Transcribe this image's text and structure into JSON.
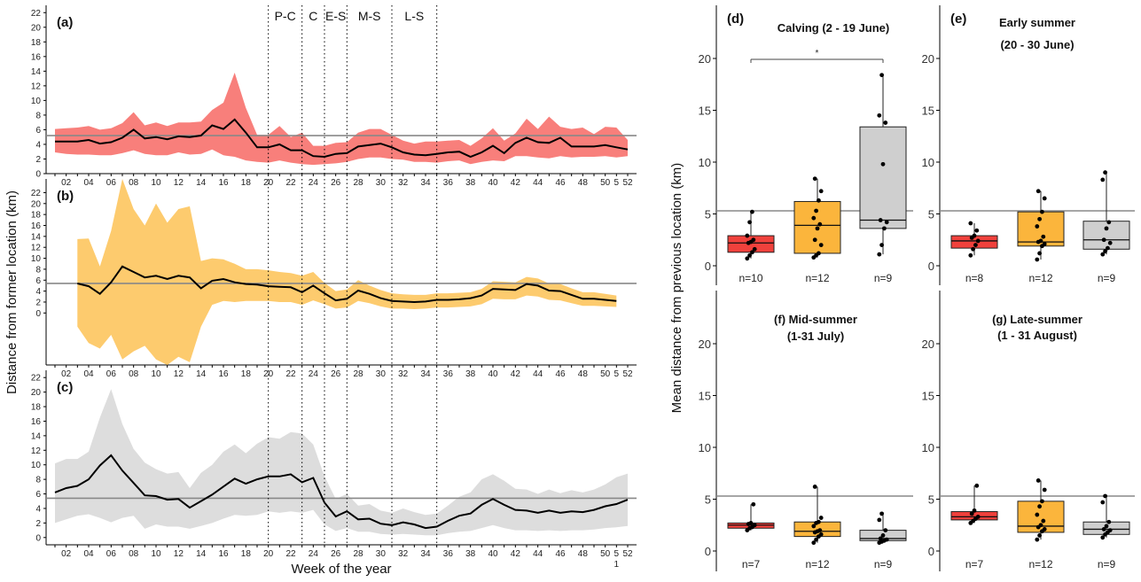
{
  "chart_data": [
    {
      "type": "area",
      "panel": "(a)",
      "xlabel": "Week of the year",
      "ylabel": "Distance from former location (km)",
      "ylim": [
        0,
        23
      ],
      "yticks": [
        0,
        2,
        4,
        6,
        8,
        10,
        12,
        14,
        16,
        18,
        20,
        22
      ],
      "xticks": [
        "02",
        "04",
        "06",
        "08",
        "10",
        "12",
        "14",
        "16",
        "18",
        "20",
        "22",
        "24",
        "26",
        "28",
        "30",
        "32",
        "34",
        "36",
        "38",
        "40",
        "42",
        "44",
        "46",
        "48",
        "50",
        "52"
      ],
      "extra_xtick": "5",
      "extra_xtick_sub": "1",
      "reference_line": 5.2,
      "color": "#f7716d",
      "phases": [
        {
          "label": "P-C",
          "start": 20,
          "end": 23
        },
        {
          "label": "C",
          "start": 23,
          "end": 25
        },
        {
          "label": "E-S",
          "start": 25,
          "end": 27
        },
        {
          "label": "M-S",
          "start": 27,
          "end": 31
        },
        {
          "label": "L-S",
          "start": 31,
          "end": 35
        }
      ],
      "series": [
        {
          "x": [
            1,
            2,
            3,
            4,
            5,
            6,
            7,
            8,
            9,
            10,
            11,
            12,
            13,
            14,
            15,
            16,
            17,
            18,
            19,
            20,
            21,
            22,
            23,
            24,
            25,
            26,
            27,
            28,
            29,
            30,
            31,
            32,
            33,
            34,
            35,
            36,
            37,
            38,
            39,
            40,
            41,
            42,
            43,
            44,
            45,
            46,
            47,
            48,
            49,
            50,
            51,
            52
          ],
          "mean": [
            4.4,
            4.4,
            4.4,
            4.6,
            4.1,
            4.3,
            4.9,
            6.0,
            4.8,
            5.0,
            4.7,
            5.1,
            5.0,
            5.2,
            6.6,
            6.1,
            7.4,
            5.6,
            3.6,
            3.6,
            4.0,
            3.2,
            3.2,
            2.4,
            2.3,
            2.7,
            2.8,
            3.7,
            3.9,
            4.1,
            3.6,
            2.9,
            2.6,
            2.5,
            2.7,
            2.9,
            3.0,
            2.3,
            2.9,
            3.8,
            2.8,
            4.2,
            4.9,
            4.3,
            4.2,
            4.9,
            3.7,
            3.7,
            3.7,
            3.9,
            3.6,
            3.3
          ],
          "upper": [
            6.1,
            6.2,
            6.3,
            6.5,
            6.0,
            6.2,
            6.9,
            8.4,
            6.6,
            7.0,
            6.5,
            7.0,
            7.0,
            7.1,
            8.7,
            9.7,
            13.8,
            9.0,
            5.3,
            5.3,
            6.5,
            5.0,
            5.6,
            3.8,
            3.8,
            4.2,
            4.3,
            5.6,
            6.1,
            6.1,
            5.3,
            4.5,
            4.1,
            4.4,
            4.4,
            4.5,
            4.6,
            3.8,
            4.8,
            6.2,
            4.5,
            5.5,
            7.5,
            6.1,
            7.8,
            6.4,
            6.1,
            6.3,
            5.4,
            6.4,
            6.3,
            4.6
          ],
          "lower": [
            2.9,
            2.7,
            2.6,
            2.6,
            2.5,
            2.5,
            2.8,
            3.2,
            2.7,
            2.5,
            2.5,
            2.9,
            2.6,
            2.7,
            3.3,
            2.5,
            2.3,
            1.8,
            1.6,
            1.5,
            1.8,
            1.5,
            1.3,
            1.2,
            1.3,
            1.4,
            1.6,
            2.0,
            2.2,
            2.2,
            2.0,
            1.9,
            1.6,
            1.6,
            1.5,
            1.7,
            1.8,
            1.3,
            1.6,
            1.8,
            1.7,
            2.4,
            2.4,
            2.2,
            2.1,
            2.4,
            2.2,
            2.3,
            2.3,
            2.4,
            2.2,
            2.4
          ]
        }
      ]
    },
    {
      "type": "area",
      "panel": "(b)",
      "ylim": [
        -9.5,
        24.5
      ],
      "yticks": [
        0,
        2,
        4,
        6,
        8,
        10,
        12,
        14,
        16,
        18,
        20,
        22
      ],
      "xticks": [
        "02",
        "04",
        "06",
        "08",
        "10",
        "12",
        "14",
        "16",
        "18",
        "20",
        "22",
        "24",
        "26",
        "28",
        "30",
        "32",
        "34",
        "36",
        "38",
        "40",
        "42",
        "44",
        "46",
        "48",
        "50",
        "52"
      ],
      "extra_xtick": "5",
      "extra_xtick_sub": "1",
      "reference_line": 5.4,
      "color": "#fdc55e",
      "series": [
        {
          "x": [
            3,
            4,
            5,
            6,
            7,
            8,
            9,
            10,
            11,
            12,
            13,
            14,
            15,
            16,
            17,
            18,
            19,
            20,
            21,
            22,
            23,
            24,
            25,
            26,
            27,
            28,
            29,
            30,
            31,
            32,
            33,
            34,
            35,
            36,
            37,
            38,
            39,
            40,
            41,
            42,
            43,
            44,
            45,
            46,
            47,
            48,
            49,
            50,
            51
          ],
          "mean": [
            5.4,
            4.9,
            3.5,
            5.6,
            8.5,
            7.5,
            6.5,
            6.8,
            6.2,
            6.8,
            6.5,
            4.5,
            5.9,
            6.2,
            5.6,
            5.3,
            5.2,
            4.9,
            4.8,
            4.7,
            3.8,
            5.0,
            3.6,
            2.3,
            2.6,
            4.1,
            3.5,
            2.7,
            2.2,
            2.1,
            2.0,
            2.1,
            2.4,
            2.4,
            2.5,
            2.7,
            3.2,
            4.4,
            4.3,
            4.2,
            5.3,
            5.0,
            4.1,
            4.0,
            3.3,
            2.6,
            2.6,
            2.4,
            2.2
          ],
          "upper": [
            13.5,
            13.6,
            8.5,
            15.0,
            24.5,
            19.0,
            16.0,
            20.0,
            16.5,
            19.0,
            19.5,
            9.5,
            10.0,
            9.8,
            9.0,
            8.0,
            8.0,
            7.8,
            7.5,
            7.3,
            6.8,
            7.5,
            5.5,
            4.0,
            4.3,
            6.0,
            5.0,
            4.2,
            3.6,
            3.4,
            3.3,
            3.3,
            3.6,
            3.6,
            3.7,
            3.8,
            4.4,
            5.8,
            5.7,
            5.6,
            6.6,
            6.3,
            5.4,
            5.3,
            4.5,
            3.8,
            3.8,
            3.5,
            3.2
          ],
          "lower": [
            -2.5,
            -5.5,
            -6.5,
            -4.0,
            -8.5,
            -7.0,
            -6.0,
            -8.5,
            -9.5,
            -8.0,
            -9.0,
            -2.5,
            1.5,
            2.2,
            2.0,
            2.2,
            2.2,
            2.2,
            2.0,
            2.0,
            1.5,
            2.3,
            1.6,
            0.8,
            1.0,
            2.2,
            1.8,
            1.2,
            0.8,
            0.8,
            0.7,
            0.8,
            1.0,
            1.0,
            1.1,
            1.2,
            1.6,
            2.6,
            2.5,
            2.5,
            3.2,
            3.0,
            2.4,
            2.3,
            1.8,
            1.3,
            1.3,
            1.2,
            1.1
          ]
        }
      ]
    },
    {
      "type": "area",
      "panel": "(c)",
      "ylim": [
        -1,
        23
      ],
      "yticks": [
        0,
        2,
        4,
        6,
        8,
        10,
        12,
        14,
        16,
        18,
        20,
        22
      ],
      "xticks": [
        "02",
        "04",
        "06",
        "08",
        "10",
        "12",
        "14",
        "16",
        "18",
        "20",
        "22",
        "24",
        "26",
        "28",
        "30",
        "32",
        "34",
        "36",
        "38",
        "40",
        "42",
        "44",
        "46",
        "48",
        "50",
        "52"
      ],
      "extra_xtick": "5",
      "extra_xtick_sub": "1",
      "reference_line": 5.4,
      "color": "#d9d9d9",
      "series": [
        {
          "x": [
            1,
            2,
            3,
            4,
            5,
            6,
            7,
            8,
            9,
            10,
            11,
            12,
            13,
            14,
            15,
            16,
            17,
            18,
            19,
            20,
            21,
            22,
            23,
            24,
            25,
            26,
            27,
            28,
            29,
            30,
            31,
            32,
            33,
            34,
            35,
            36,
            37,
            38,
            39,
            40,
            41,
            42,
            43,
            44,
            45,
            46,
            47,
            48,
            49,
            50,
            51,
            52
          ],
          "mean": [
            6.2,
            6.8,
            7.1,
            8.0,
            9.9,
            11.3,
            9.2,
            7.5,
            5.8,
            5.7,
            5.2,
            5.3,
            4.1,
            5.0,
            5.9,
            7.0,
            8.1,
            7.4,
            8.0,
            8.4,
            8.4,
            8.7,
            7.6,
            8.2,
            4.8,
            2.9,
            3.6,
            2.5,
            2.6,
            1.9,
            1.7,
            2.1,
            1.8,
            1.3,
            1.5,
            2.3,
            3.0,
            3.3,
            4.5,
            5.3,
            4.5,
            3.8,
            3.7,
            3.4,
            3.7,
            3.4,
            3.6,
            3.5,
            3.8,
            4.3,
            4.6,
            5.2
          ],
          "upper": [
            10.2,
            10.8,
            10.8,
            11.8,
            16.5,
            20.4,
            15.6,
            12.2,
            10.3,
            9.4,
            8.8,
            9.0,
            6.8,
            8.9,
            10.0,
            11.8,
            12.8,
            11.6,
            12.9,
            13.8,
            13.6,
            14.5,
            14.3,
            12.8,
            8.4,
            5.3,
            6.0,
            4.4,
            4.6,
            3.7,
            3.4,
            4.0,
            3.5,
            3.1,
            3.3,
            4.4,
            5.6,
            6.2,
            8.0,
            8.7,
            7.8,
            6.7,
            6.6,
            6.0,
            6.6,
            6.1,
            6.5,
            6.2,
            6.6,
            7.3,
            8.3,
            8.8
          ],
          "lower": [
            2.0,
            2.5,
            3.0,
            3.2,
            2.7,
            2.1,
            2.7,
            3.0,
            1.2,
            1.8,
            1.5,
            1.5,
            1.2,
            1.6,
            2.0,
            2.6,
            3.1,
            3.0,
            3.1,
            3.6,
            3.4,
            3.6,
            3.4,
            3.8,
            1.8,
            0.9,
            1.3,
            0.8,
            0.8,
            0.5,
            0.4,
            0.5,
            0.4,
            0.3,
            0.3,
            0.6,
            0.8,
            0.9,
            1.3,
            1.7,
            1.3,
            1.0,
            1.0,
            0.9,
            1.0,
            0.9,
            1.0,
            1.0,
            1.1,
            1.3,
            1.4,
            1.6
          ]
        }
      ]
    },
    {
      "type": "box",
      "panel": "(d)",
      "title": "Calving (2 - 19 June)",
      "ylabel": "Mean distance from previous location (km)",
      "ylim": [
        -2.5,
        24
      ],
      "yticks": [
        0,
        5,
        10,
        15,
        20
      ],
      "reference_line": 5.3,
      "significance_marker": "*",
      "groups": [
        {
          "n_label": "n=10",
          "color": "#f0413c",
          "min": 0.7,
          "q1": 1.3,
          "median": 2.2,
          "q3": 2.9,
          "max": 5.2,
          "points": [
            0.7,
            1.0,
            1.3,
            1.6,
            2.2,
            2.3,
            2.5,
            2.9,
            4.2,
            5.2
          ]
        },
        {
          "n_label": "n=12",
          "color": "#fbb53c",
          "min": 0.8,
          "q1": 1.2,
          "median": 3.9,
          "q3": 6.2,
          "max": 8.4,
          "points": [
            0.8,
            1.0,
            1.2,
            2.0,
            2.5,
            3.6,
            4.0,
            4.6,
            5.3,
            6.3,
            7.2,
            8.4
          ]
        },
        {
          "n_label": "n=9",
          "color": "#cfcfcf",
          "min": 1.1,
          "q1": 3.6,
          "median": 4.4,
          "q3": 13.4,
          "max": 18.4,
          "points": [
            1.1,
            2.0,
            3.6,
            4.2,
            4.4,
            9.8,
            13.8,
            14.5,
            18.4
          ]
        }
      ]
    },
    {
      "type": "box",
      "panel": "(e)",
      "title": "Early summer",
      "subtitle": "(20 - 30 June)",
      "ylim": [
        -2.5,
        24
      ],
      "yticks": [
        0,
        5,
        10,
        15,
        20
      ],
      "reference_line": 5.3,
      "groups": [
        {
          "n_label": "n=8",
          "color": "#f0413c",
          "min": 1.0,
          "q1": 1.7,
          "median": 2.4,
          "q3": 2.9,
          "max": 4.1,
          "points": [
            1.0,
            1.6,
            2.0,
            2.4,
            2.7,
            2.9,
            3.4,
            4.1
          ]
        },
        {
          "n_label": "n=12",
          "color": "#fbb53c",
          "min": 0.6,
          "q1": 1.9,
          "median": 2.3,
          "q3": 5.2,
          "max": 7.2,
          "points": [
            0.6,
            1.2,
            1.9,
            2.1,
            2.3,
            2.4,
            2.8,
            3.8,
            4.5,
            5.2,
            6.5,
            7.2
          ]
        },
        {
          "n_label": "n=9",
          "color": "#cfcfcf",
          "min": 1.1,
          "q1": 1.6,
          "median": 2.5,
          "q3": 4.3,
          "max": 9.0,
          "points": [
            1.1,
            1.4,
            1.7,
            2.2,
            2.5,
            3.6,
            4.2,
            8.3,
            9.0
          ]
        }
      ]
    },
    {
      "type": "box",
      "panel": "(f)",
      "title": "(f) Mid-summer",
      "subtitle": "(1-31 July)",
      "ylim": [
        -2.5,
        24
      ],
      "yticks": [
        0,
        5,
        10,
        15,
        20
      ],
      "reference_line": 5.3,
      "groups": [
        {
          "n_label": "n=7",
          "color": "#f0413c",
          "min": 2.0,
          "q1": 2.2,
          "median": 2.5,
          "q3": 2.7,
          "max": 4.5,
          "points": [
            2.0,
            2.2,
            2.3,
            2.5,
            2.6,
            2.7,
            4.5
          ]
        },
        {
          "n_label": "n=12",
          "color": "#fbb53c",
          "min": 0.8,
          "q1": 1.4,
          "median": 1.9,
          "q3": 2.8,
          "max": 6.2,
          "points": [
            0.8,
            1.1,
            1.4,
            1.6,
            1.8,
            1.9,
            2.0,
            2.4,
            2.7,
            2.8,
            3.2,
            6.2
          ]
        },
        {
          "n_label": "n=9",
          "color": "#cfcfcf",
          "min": 0.8,
          "q1": 1.0,
          "median": 1.2,
          "q3": 2.0,
          "max": 3.6,
          "points": [
            0.8,
            0.9,
            1.0,
            1.1,
            1.2,
            1.5,
            2.0,
            3.0,
            3.6
          ]
        }
      ]
    },
    {
      "type": "box",
      "panel": "(g)",
      "title": "(g) Late-summer",
      "subtitle": "(1 - 31 August)",
      "ylim": [
        -2.5,
        24
      ],
      "yticks": [
        0,
        5,
        10,
        15,
        20
      ],
      "reference_line": 5.3,
      "groups": [
        {
          "n_label": "n=7",
          "color": "#f0413c",
          "min": 2.7,
          "q1": 3.0,
          "median": 3.3,
          "q3": 3.8,
          "max": 6.3,
          "points": [
            2.7,
            2.9,
            3.1,
            3.3,
            3.6,
            3.9,
            6.3
          ]
        },
        {
          "n_label": "n=12",
          "color": "#fbb53c",
          "min": 1.1,
          "q1": 1.8,
          "median": 2.4,
          "q3": 4.8,
          "max": 6.8,
          "points": [
            1.1,
            1.5,
            1.9,
            2.1,
            2.3,
            2.5,
            2.9,
            3.5,
            4.3,
            4.8,
            5.9,
            6.8
          ]
        },
        {
          "n_label": "n=9",
          "color": "#cfcfcf",
          "min": 1.3,
          "q1": 1.6,
          "median": 2.1,
          "q3": 2.8,
          "max": 5.3,
          "points": [
            1.3,
            1.6,
            1.8,
            2.0,
            2.1,
            2.4,
            2.8,
            4.7,
            5.3
          ]
        }
      ]
    }
  ]
}
